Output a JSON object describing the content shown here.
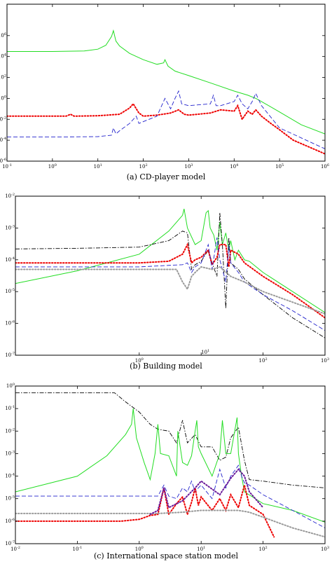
{
  "colors": {
    "green": "#22dd22",
    "red": "#ee0000",
    "blue": "#2222cc",
    "black": "#000000",
    "purple": "#6a1a9a",
    "gray": "#9a9a9a"
  },
  "chart_data": [
    {
      "type": "line",
      "title": "",
      "caption": "(a) CD-player model",
      "xscale": "log",
      "yscale": "log",
      "xlim": [
        0.1,
        1000000
      ],
      "ylim": [
        1e-06,
        1000000000
      ],
      "xticks": [
        0.1,
        1,
        10,
        100,
        1000,
        10000,
        100000,
        1000000
      ],
      "xtick_base": "10",
      "xtick_exps": [
        "-1",
        "0",
        "1",
        "2",
        "3",
        "4",
        "5",
        "6"
      ],
      "yticks": [
        1e-06,
        0.0001,
        0.01,
        1,
        100,
        10000,
        1000000
      ],
      "ytick_base": "10",
      "ytick_exps": [
        "-6",
        "-4",
        "-2",
        "0",
        "2",
        "4",
        "6"
      ],
      "series": [
        {
          "color": "green",
          "style": "solid",
          "x": [
            0.1,
            1,
            5,
            10,
            15,
            20,
            22,
            25,
            30,
            50,
            100,
            200,
            280,
            300,
            350,
            500,
            1000,
            3000,
            10000,
            20000,
            30000,
            40000,
            100000,
            300000,
            1000000
          ],
          "y": [
            30000,
            30000,
            34000,
            50000,
            120000,
            800000,
            3000000,
            300000,
            100000,
            20000,
            5000,
            1800,
            2500,
            5000,
            1200,
            400,
            150,
            30,
            5,
            2,
            1,
            0.5,
            0.05,
            0.003,
            0.0004
          ]
        },
        {
          "color": "red",
          "style": "dotted",
          "x": [
            0.1,
            1,
            2,
            2.5,
            3,
            10,
            30,
            50,
            60,
            80,
            100,
            200,
            400,
            600,
            800,
            1000,
            3000,
            5000,
            10000,
            12000,
            15000,
            20000,
            25000,
            30000,
            40000,
            60000,
            100000,
            200000,
            1000000
          ],
          "y": [
            0.02,
            0.02,
            0.02,
            0.03,
            0.02,
            0.022,
            0.03,
            0.12,
            0.3,
            0.04,
            0.02,
            0.025,
            0.04,
            0.08,
            0.03,
            0.025,
            0.04,
            0.08,
            0.06,
            0.2,
            0.01,
            0.06,
            0.03,
            0.08,
            0.02,
            0.005,
            0.001,
            0.0001,
            5e-06
          ]
        },
        {
          "color": "blue",
          "style": "dashed",
          "x": [
            0.1,
            1,
            10,
            20,
            22,
            25,
            30,
            50,
            70,
            80,
            100,
            200,
            300,
            400,
            500,
            600,
            700,
            1000,
            3000,
            3500,
            4000,
            5000,
            10000,
            12000,
            15000,
            20000,
            25000,
            30000,
            40000,
            100000,
            1000000
          ],
          "y": [
            0.0002,
            0.0002,
            0.00022,
            0.0003,
            0.0015,
            0.0004,
            0.0008,
            0.004,
            0.02,
            0.004,
            0.006,
            0.02,
            1,
            0.1,
            1,
            5,
            0.3,
            0.2,
            0.3,
            2,
            0.2,
            0.2,
            0.5,
            2,
            0.3,
            0.1,
            0.5,
            3,
            0.2,
            0.0015,
            1.5e-05
          ]
        }
      ]
    },
    {
      "type": "line",
      "title": "",
      "caption": "(b) Building model",
      "xscale": "log",
      "yscale": "log",
      "xlim": [
        0.01,
        1000
      ],
      "ylim": [
        1e-07,
        0.01
      ],
      "xticks": [
        1,
        100,
        1000
      ],
      "xtick_base": "10",
      "xtick_exps": [
        "0",
        "2",
        "3"
      ],
      "xtick_inner": [
        10
      ],
      "xtick_inner_exps": [
        "1"
      ],
      "yticks": [
        1e-07,
        1e-06,
        1e-05,
        0.0001,
        0.001,
        0.01
      ],
      "ytick_base": "10",
      "ytick_exps": [
        "-7",
        "-6",
        "-5",
        "-4",
        "-3",
        "-2"
      ],
      "series": [
        {
          "color": "green",
          "style": "solid",
          "x": [
            0.01,
            0.1,
            1,
            3,
            5,
            5.3,
            6,
            8,
            10,
            12,
            13,
            14,
            16,
            18,
            20,
            22,
            25,
            28,
            30,
            35,
            40,
            50,
            60,
            100,
            300,
            1000
          ],
          "y": [
            1.8e-05,
            4.5e-05,
            0.00015,
            0.0008,
            0.0025,
            0.004,
            0.001,
            0.0003,
            0.0004,
            0.003,
            0.0035,
            0.001,
            0.0006,
            0.0002,
            0.0015,
            0.0003,
            0.0007,
            0.0002,
            0.0004,
            0.0001,
            0.0002,
            0.0001,
            9e-05,
            4e-05,
            1e-05,
            2.2e-06
          ]
        },
        {
          "color": "black",
          "style": "dashdot",
          "x": [
            0.01,
            0.1,
            1,
            3,
            5,
            6,
            7,
            8,
            10,
            13,
            15,
            18,
            20,
            22,
            25,
            28,
            30,
            40,
            50,
            100,
            300,
            1000
          ],
          "y": [
            0.00022,
            0.00023,
            0.00025,
            0.0004,
            0.0008,
            0.0007,
            5e-05,
            7e-05,
            9e-05,
            0.0002,
            8e-05,
            3e-05,
            0.003,
            0.0003,
            3e-06,
            0.0005,
            8e-05,
            5e-05,
            2.5e-05,
            8e-06,
            1.5e-06,
            3.5e-07
          ]
        },
        {
          "color": "red",
          "style": "dotted",
          "x": [
            0.01,
            0.1,
            1,
            3,
            5,
            6,
            7,
            8,
            10,
            13,
            15,
            18,
            20,
            25,
            28,
            30,
            40,
            50,
            100,
            300,
            1000
          ],
          "y": [
            8e-05,
            8e-05,
            8e-05,
            9e-05,
            0.00015,
            0.0003,
            8e-05,
            0.0001,
            0.00012,
            0.0002,
            7e-05,
            0.00012,
            0.0003,
            0.0003,
            6e-05,
            0.0002,
            0.00015,
            8e-05,
            3e-05,
            8e-06,
            1.5e-06
          ]
        },
        {
          "color": "blue",
          "style": "dashed",
          "x": [
            0.01,
            0.1,
            1,
            5,
            6,
            7,
            8,
            10,
            13,
            15,
            18,
            20,
            25,
            28,
            30,
            40,
            50,
            100,
            300,
            1000
          ],
          "y": [
            6e-05,
            6e-05,
            6e-05,
            7e-05,
            8e-05,
            4e-05,
            6e-05,
            8e-05,
            0.0003,
            5e-05,
            0.0005,
            0.0001,
            2e-05,
            0.0003,
            8e-05,
            4e-05,
            2e-05,
            8e-06,
            2.5e-06,
            6e-07
          ]
        },
        {
          "color": "gray",
          "style": "dotted",
          "x": [
            0.01,
            0.1,
            1,
            4,
            5,
            6,
            7,
            8,
            10,
            15,
            20,
            30,
            50,
            100,
            1000
          ],
          "y": [
            5e-05,
            5e-05,
            5e-05,
            5e-05,
            2e-05,
            1.2e-05,
            3e-05,
            4e-05,
            6e-05,
            5e-05,
            6e-05,
            3e-05,
            2e-05,
            1e-05,
            2e-06
          ]
        }
      ]
    },
    {
      "type": "line",
      "title": "",
      "caption": "(c) International space station model",
      "xscale": "log",
      "yscale": "log",
      "xlim": [
        0.01,
        1000
      ],
      "ylim": [
        1e-07,
        1
      ],
      "xticks": [
        0.01,
        0.1,
        1,
        10,
        100,
        1000
      ],
      "xtick_base": "10",
      "xtick_exps": [
        "-2",
        "-1",
        "0",
        "1",
        "2",
        "3"
      ],
      "yticks": [
        1e-07,
        1e-06,
        1e-05,
        0.0001,
        0.001,
        0.01,
        0.1,
        1
      ],
      "ytick_base": "10",
      "ytick_exps": [
        "-7",
        "-6",
        "-5",
        "-4",
        "-3",
        "-2",
        "-1",
        "0"
      ],
      "series": [
        {
          "color": "black",
          "style": "dashdot",
          "x": [
            0.01,
            0.1,
            0.4,
            0.6,
            1,
            1.5,
            2,
            3,
            4,
            5,
            6,
            8,
            10,
            15,
            20,
            25,
            30,
            40,
            50,
            60,
            100,
            300,
            1000
          ],
          "y": [
            0.5,
            0.5,
            0.5,
            0.2,
            0.07,
            0.02,
            0.012,
            0.01,
            0.003,
            0.03,
            0.003,
            0.007,
            0.002,
            0.002,
            0.0005,
            0.0007,
            0.005,
            0.015,
            0.0005,
            7e-05,
            6e-05,
            4e-05,
            3e-05
          ]
        },
        {
          "color": "green",
          "style": "solid",
          "x": [
            0.01,
            0.1,
            0.3,
            0.6,
            0.75,
            0.8,
            0.9,
            1.2,
            1.5,
            1.8,
            2,
            2.2,
            3,
            4,
            4.2,
            5,
            6,
            7,
            8,
            8.5,
            9,
            10,
            15,
            20,
            22,
            25,
            30,
            38,
            40,
            45,
            50,
            100,
            300,
            1000
          ],
          "y": [
            2e-05,
            0.0001,
            0.0008,
            0.007,
            0.02,
            0.1,
            0.005,
            0.0004,
            7e-05,
            0.001,
            0.02,
            0.001,
            0.0008,
            0.0001,
            0.01,
            0.0004,
            0.0003,
            0.0008,
            0.01,
            0.03,
            0.002,
            0.001,
            0.0001,
            0.001,
            0.03,
            0.001,
            0.001,
            0.04,
            0.001,
            0.0001,
            2e-05,
            6e-06,
            3e-06,
            9e-07
          ]
        },
        {
          "color": "blue",
          "style": "dashed",
          "x": [
            0.01,
            0.1,
            1,
            2,
            2.5,
            3,
            4,
            5,
            6,
            7,
            8,
            9,
            10,
            15,
            20,
            25,
            30,
            40,
            45,
            50,
            60,
            100,
            300,
            1000
          ],
          "y": [
            1.3e-05,
            1.3e-05,
            1.3e-05,
            1.3e-05,
            4e-05,
            1.3e-05,
            1e-05,
            3e-05,
            2e-05,
            6e-05,
            2e-05,
            3e-05,
            4e-05,
            1e-05,
            0.0002,
            3e-05,
            0.0001,
            0.0003,
            0.0001,
            5e-05,
            4e-05,
            1.5e-05,
            3e-06,
            5e-07
          ]
        },
        {
          "color": "red",
          "style": "dotted",
          "x": [
            0.01,
            0.1,
            0.5,
            1,
            1.5,
            2,
            2.5,
            3,
            4,
            5,
            6,
            7,
            8,
            9,
            10,
            15,
            20,
            25,
            30,
            40,
            50,
            60,
            100,
            150
          ],
          "y": [
            1e-06,
            1e-06,
            1e-06,
            1.2e-06,
            1.8e-06,
            2e-06,
            3e-05,
            2e-06,
            6e-06,
            1.2e-05,
            2e-06,
            7e-06,
            3e-05,
            5e-06,
            1.2e-05,
            3e-06,
            1e-05,
            3e-06,
            1.5e-05,
            4e-06,
            4e-05,
            5e-06,
            2e-06,
            2e-07
          ]
        },
        {
          "color": "gray",
          "style": "dotted",
          "x": [
            0.01,
            0.1,
            1,
            2,
            5,
            10,
            20,
            40,
            60,
            100,
            300,
            1000
          ],
          "y": [
            2.2e-06,
            2.2e-06,
            2.2e-06,
            2.2e-06,
            2.5e-06,
            3e-06,
            3e-06,
            3e-06,
            2.5e-06,
            1.5e-06,
            5e-07,
            2e-07
          ]
        },
        {
          "color": "purple",
          "style": "dotted",
          "x": [
            1.5,
            2,
            2.5,
            3,
            5,
            8,
            10,
            20,
            30,
            40,
            50,
            60,
            100
          ],
          "y": [
            2e-06,
            3e-06,
            3e-05,
            4e-06,
            8e-06,
            3e-05,
            6e-05,
            1.5e-05,
            8e-05,
            0.0002,
            0.0001,
            2e-05,
            4e-06
          ]
        }
      ]
    }
  ]
}
